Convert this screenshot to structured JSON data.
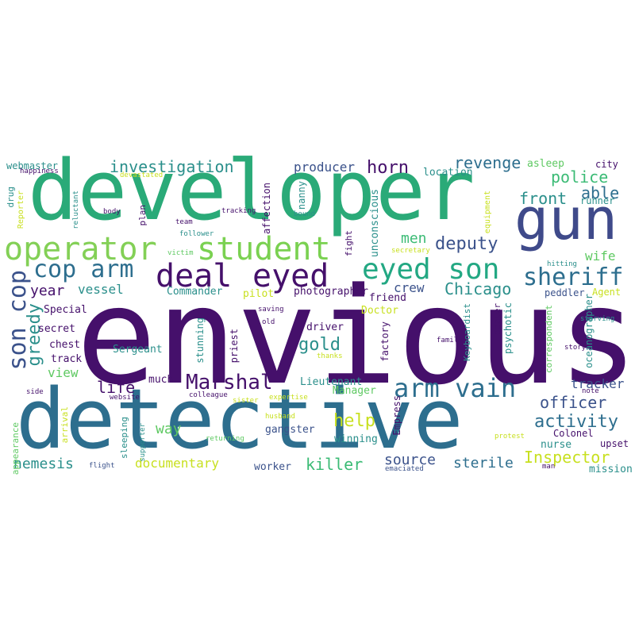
{
  "words": [
    {
      "text": "envious",
      "color": "#45106b"
    },
    {
      "text": "developer",
      "color": "#2aaa78"
    },
    {
      "text": "detective",
      "color": "#2d6e8e"
    },
    {
      "text": "gun",
      "color": "#3f4a8a"
    },
    {
      "text": "operator",
      "color": "#83d056"
    },
    {
      "text": "student",
      "color": "#7ad151"
    },
    {
      "text": "deal",
      "color": "#45106b"
    },
    {
      "text": "eyed",
      "color": "#45106b"
    },
    {
      "text": "eyed son",
      "color": "#23a883"
    },
    {
      "text": "cop arm",
      "color": "#2d6e8e"
    },
    {
      "text": "son cop",
      "color": "#3b528b"
    },
    {
      "text": "arm vain",
      "color": "#2d6e8e"
    },
    {
      "text": "Marshal",
      "color": "#45106b"
    },
    {
      "text": "sheriff",
      "color": "#2d6e8e"
    },
    {
      "text": "deputy",
      "color": "#3b528b"
    },
    {
      "text": "horn",
      "color": "#45106b"
    },
    {
      "text": "police",
      "color": "#3bbb75"
    },
    {
      "text": "revenge",
      "color": "#2d6e8e"
    },
    {
      "text": "investigation",
      "color": "#2a8f8b"
    },
    {
      "text": "front",
      "color": "#2a8f8b"
    },
    {
      "text": "able",
      "color": "#2d6e8e"
    },
    {
      "text": "men",
      "color": "#3bbb75"
    },
    {
      "text": "producer",
      "color": "#3b528b"
    },
    {
      "text": "Chicago",
      "color": "#2a8f8b"
    },
    {
      "text": "gold",
      "color": "#2a8f8b"
    },
    {
      "text": "help",
      "color": "#c8e020"
    },
    {
      "text": "activity",
      "color": "#2d6e8e"
    },
    {
      "text": "officer",
      "color": "#3b528b"
    },
    {
      "text": "Inspector",
      "color": "#c8e020"
    },
    {
      "text": "source",
      "color": "#3b528b"
    },
    {
      "text": "sterile",
      "color": "#2d6e8e"
    },
    {
      "text": "killer",
      "color": "#3bbb75"
    },
    {
      "text": "documentary",
      "color": "#c8e020"
    },
    {
      "text": "nemesis",
      "color": "#2a8f8b"
    },
    {
      "text": "way",
      "color": "#5ec962"
    },
    {
      "text": "life",
      "color": "#45106b"
    },
    {
      "text": "greedy",
      "color": "#2a8f8b"
    },
    {
      "text": "year",
      "color": "#45106b"
    },
    {
      "text": "vessel",
      "color": "#2a8f8b"
    },
    {
      "text": "view",
      "color": "#5ec962"
    },
    {
      "text": "tracker",
      "color": "#3b528b"
    },
    {
      "text": "wife",
      "color": "#5ec962"
    },
    {
      "text": "crew",
      "color": "#3b528b"
    },
    {
      "text": "Special",
      "color": "#45106b"
    },
    {
      "text": "secret",
      "color": "#45106b"
    },
    {
      "text": "chest",
      "color": "#45106b"
    },
    {
      "text": "track",
      "color": "#45106b"
    },
    {
      "text": "Sergeant",
      "color": "#2a8f8b"
    },
    {
      "text": "Commander",
      "color": "#2a8f8b"
    },
    {
      "text": "pilot",
      "color": "#c8e020"
    },
    {
      "text": "photographer",
      "color": "#45106b"
    },
    {
      "text": "friend",
      "color": "#45106b"
    },
    {
      "text": "Doctor",
      "color": "#c8e020"
    },
    {
      "text": "driver",
      "color": "#45106b"
    },
    {
      "text": "Lieutenant",
      "color": "#2a8f8b"
    },
    {
      "text": "Manager",
      "color": "#5ec962"
    },
    {
      "text": "much",
      "color": "#45106b"
    },
    {
      "text": "winning",
      "color": "#2a8f8b"
    },
    {
      "text": "gangster",
      "color": "#3b528b"
    },
    {
      "text": "worker",
      "color": "#3b528b"
    },
    {
      "text": "Colonel",
      "color": "#45106b"
    },
    {
      "text": "upset",
      "color": "#45106b"
    },
    {
      "text": "nurse",
      "color": "#2a8f8b"
    },
    {
      "text": "mission",
      "color": "#2a8f8b"
    },
    {
      "text": "peddler",
      "color": "#3b528b"
    },
    {
      "text": "Agent",
      "color": "#c8e020"
    },
    {
      "text": "runner",
      "color": "#2a8f8b"
    },
    {
      "text": "city",
      "color": "#45106b"
    },
    {
      "text": "asleep",
      "color": "#5ec962"
    },
    {
      "text": "location",
      "color": "#2a8f8b"
    },
    {
      "text": "webmaster",
      "color": "#2a8f8b"
    },
    {
      "text": "happiness",
      "color": "#45106b"
    },
    {
      "text": "drug",
      "color": "#2a8f8b"
    },
    {
      "text": "Reporter",
      "color": "#c8e020"
    },
    {
      "text": "reluctant",
      "color": "#2a8f8b"
    },
    {
      "text": "devastated",
      "color": "#c8e020"
    },
    {
      "text": "body",
      "color": "#45106b"
    },
    {
      "text": "team",
      "color": "#45106b"
    },
    {
      "text": "victim",
      "color": "#5ec962"
    },
    {
      "text": "follower",
      "color": "#2a8f8b"
    },
    {
      "text": "plan",
      "color": "#45106b"
    },
    {
      "text": "tracking",
      "color": "#45106b"
    },
    {
      "text": "affection",
      "color": "#45106b"
    },
    {
      "text": "nanny",
      "color": "#2a8f8b"
    },
    {
      "text": "bound",
      "color": "#2a8f8b"
    },
    {
      "text": "fight",
      "color": "#45106b"
    },
    {
      "text": "unconscious",
      "color": "#2a8f8b"
    },
    {
      "text": "secretary",
      "color": "#c8e020"
    },
    {
      "text": "equipment",
      "color": "#c8e020"
    },
    {
      "text": "hitting",
      "color": "#2a8f8b"
    },
    {
      "text": "saving",
      "color": "#45106b"
    },
    {
      "text": "old",
      "color": "#45106b"
    },
    {
      "text": "Keyboardist",
      "color": "#2a8f8b"
    },
    {
      "text": "dealer",
      "color": "#45106b"
    },
    {
      "text": "psychotic",
      "color": "#2a8f8b"
    },
    {
      "text": "correspondent",
      "color": "#5ec962"
    },
    {
      "text": "oceanographer",
      "color": "#2a8f8b"
    },
    {
      "text": "starving",
      "color": "#2a8f8b"
    },
    {
      "text": "story",
      "color": "#45106b"
    },
    {
      "text": "family",
      "color": "#45106b"
    },
    {
      "text": "factory",
      "color": "#45106b"
    },
    {
      "text": "Empress",
      "color": "#45106b"
    },
    {
      "text": "stunning",
      "color": "#2a8f8b"
    },
    {
      "text": "priest",
      "color": "#45106b"
    },
    {
      "text": "thanks",
      "color": "#c8e020"
    },
    {
      "text": "colleague",
      "color": "#45106b"
    },
    {
      "text": "sister",
      "color": "#c8e020"
    },
    {
      "text": "expertise",
      "color": "#c8e020"
    },
    {
      "text": "husband",
      "color": "#c8e020"
    },
    {
      "text": "returning",
      "color": "#5ec962"
    },
    {
      "text": "sleeping",
      "color": "#2a8f8b"
    },
    {
      "text": "website",
      "color": "#45106b"
    },
    {
      "text": "supporter",
      "color": "#2a8f8b"
    },
    {
      "text": "arrival",
      "color": "#c8e020"
    },
    {
      "text": "appearance",
      "color": "#5ec962"
    },
    {
      "text": "side",
      "color": "#45106b"
    },
    {
      "text": "flight",
      "color": "#3b528b"
    },
    {
      "text": "emaciated",
      "color": "#3b528b"
    },
    {
      "text": "man",
      "color": "#45106b"
    },
    {
      "text": "note",
      "color": "#45106b"
    },
    {
      "text": "protest",
      "color": "#c8e020"
    }
  ]
}
